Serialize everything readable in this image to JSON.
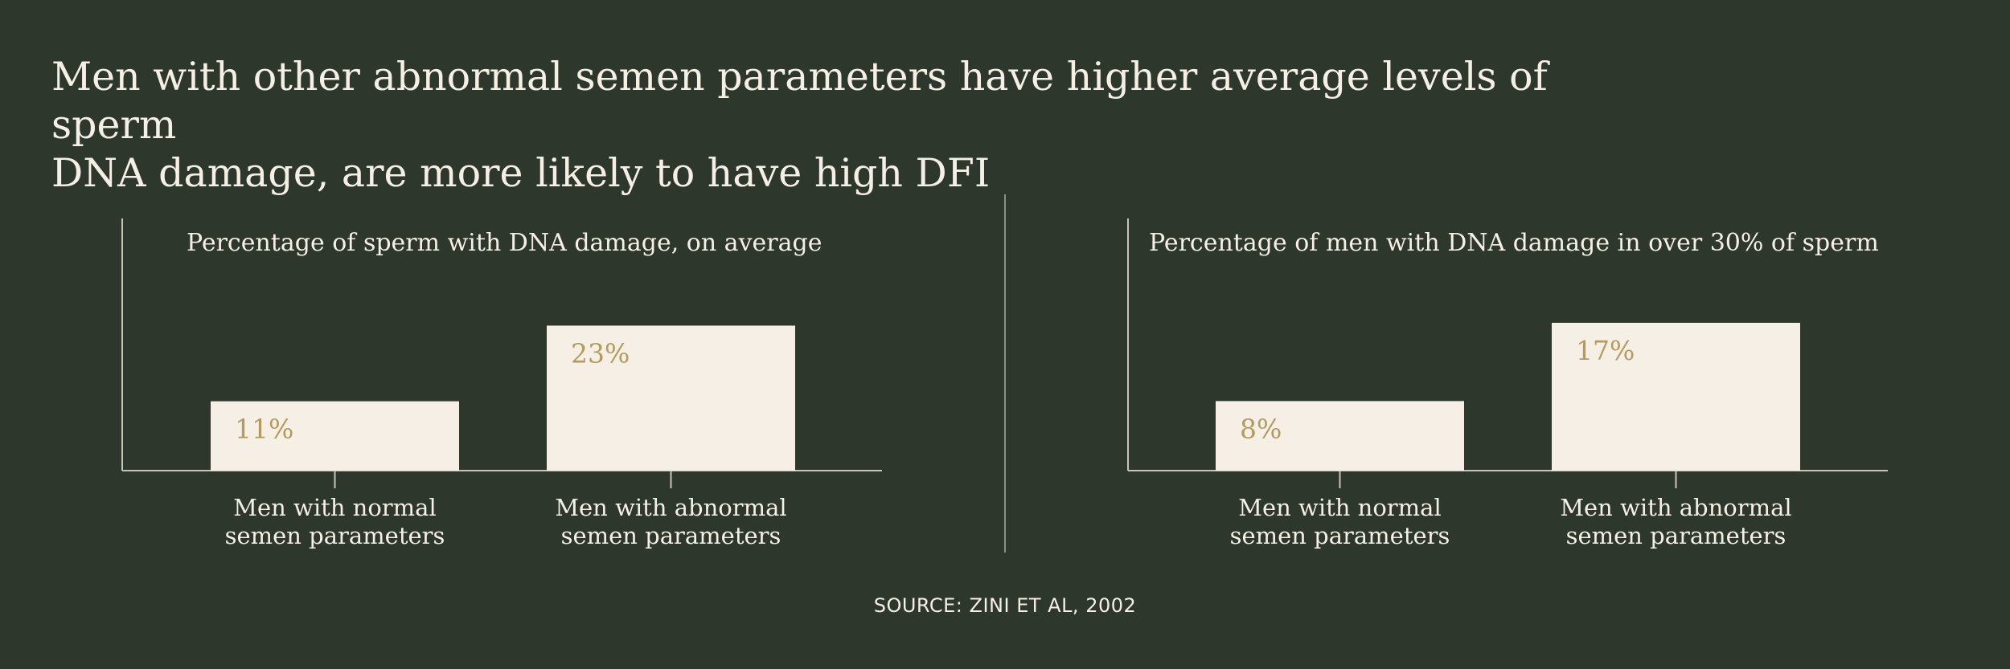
{
  "title_lines": [
    "Men with other abnormal semen parameters have higher average levels of sperm",
    "DNA damage, are more likely to have high DFI"
  ],
  "source": "SOURCE: ZINI ET AL, 2002",
  "colors": {
    "background": "#2d372c",
    "bar": "#f6efe5",
    "value_label": "#b39b5f",
    "text": "#f6efe5",
    "axis": "#c9c4b8"
  },
  "chart_data": [
    {
      "type": "bar",
      "title": "Percentage of sperm with DNA damage, on average",
      "categories": [
        [
          "Men with normal",
          "semen parameters"
        ],
        [
          "Men with abnormal",
          "semen parameters"
        ]
      ],
      "values": [
        11,
        23
      ],
      "value_labels": [
        "11%",
        "23%"
      ],
      "ylim": [
        0,
        40
      ],
      "grid": false,
      "xlabel": "",
      "ylabel": ""
    },
    {
      "type": "bar",
      "title": "Percentage of men with DNA damage in over 30% of sperm",
      "categories": [
        [
          "Men with normal",
          "semen parameters"
        ],
        [
          "Men with abnormal",
          "semen parameters"
        ]
      ],
      "values": [
        8,
        17
      ],
      "value_labels": [
        "8%",
        "17%"
      ],
      "ylim": [
        0,
        29
      ],
      "grid": false,
      "xlabel": "",
      "ylabel": ""
    }
  ]
}
